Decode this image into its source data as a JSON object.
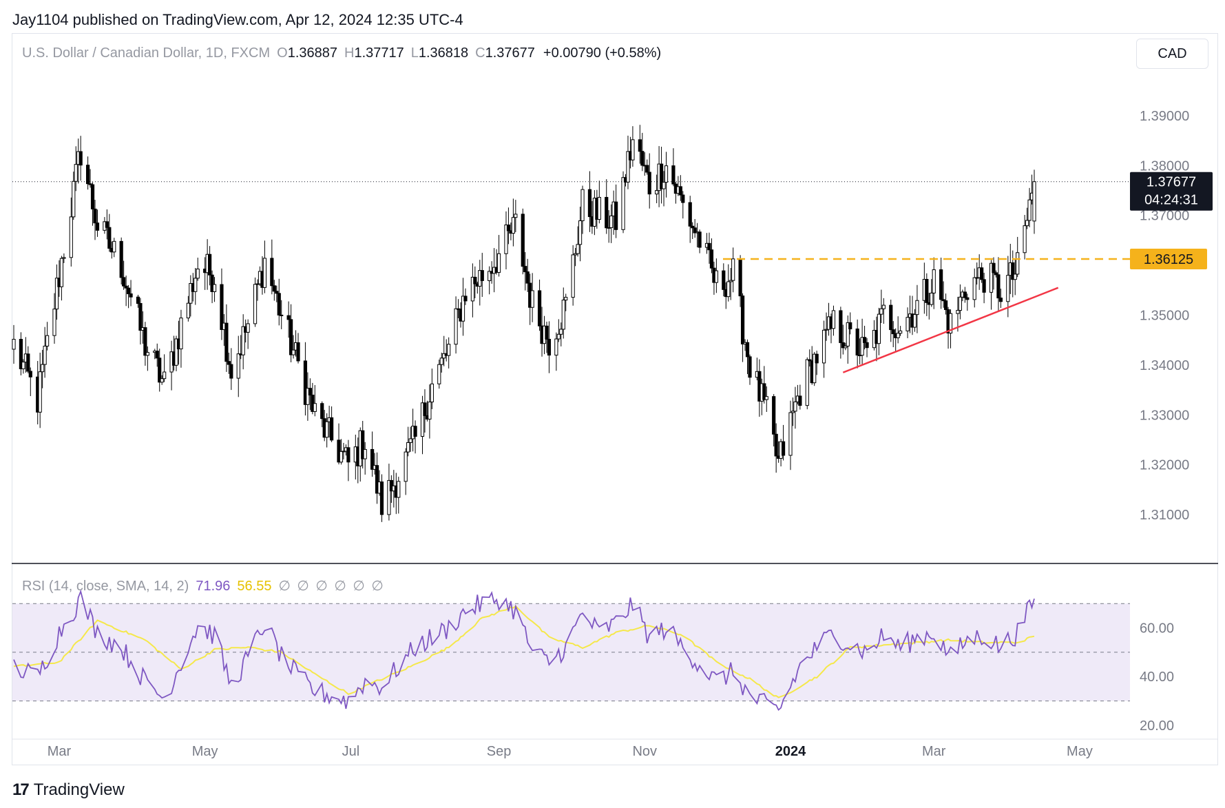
{
  "header": {
    "published_line": "Jay1104 published on TradingView.com, Apr 12, 2024 12:35 UTC-4"
  },
  "legend": {
    "symbol": "U.S. Dollar / Canadian Dollar, 1D, FXCM",
    "open_label": "O",
    "open": "1.36887",
    "high_label": "H",
    "high": "1.37717",
    "low_label": "L",
    "low": "1.36818",
    "close_label": "C",
    "close": "1.37677",
    "change": "+0.00790 (+0.58%)"
  },
  "currency_button": "CAD",
  "rsi_legend": {
    "title": "RSI (14, close, SMA, 14, 2)",
    "rsi": "71.96",
    "sma": "56.55",
    "na": "∅ ∅ ∅ ∅ ∅ ∅"
  },
  "footer": {
    "brand": "TradingView"
  },
  "colors": {
    "up": "#ffffff",
    "down": "#000000",
    "wick": "#000000",
    "support": "#f5b21b",
    "trendline": "#f23645",
    "rsi": "#7e57c2",
    "rsi_sma": "#f5e84a",
    "rsi_band": "#efeaf8",
    "rsi_bg": "#ffffff"
  },
  "chart_data": [
    {
      "type": "candlestick",
      "title": "U.S. Dollar / Canadian Dollar, 1D, FXCM",
      "ylim": [
        1.302,
        1.398
      ],
      "yticks": [
        "1.39000",
        "1.38000",
        "1.37000",
        "1.36000",
        "1.35000",
        "1.34000",
        "1.33000",
        "1.32000",
        "1.31000"
      ],
      "xticks": [
        "Mar",
        "May",
        "Jul",
        "Sep",
        "Nov",
        "2024",
        "Mar",
        "May"
      ],
      "last_price": "1.37677",
      "countdown": "04:24:31",
      "support_level": {
        "value": 1.36125,
        "label": "1.36125"
      },
      "trendline": {
        "from": [
          "2024-01-23",
          1.3385
        ],
        "to": [
          "2024-04-22",
          1.3555
        ]
      },
      "path_points": [
        [
          "2023-02-10",
          1.344
        ],
        [
          "2023-02-20",
          1.333
        ],
        [
          "2023-03-01",
          1.358
        ],
        [
          "2023-03-10",
          1.383
        ],
        [
          "2023-03-17",
          1.368
        ],
        [
          "2023-03-27",
          1.36
        ],
        [
          "2023-04-06",
          1.344
        ],
        [
          "2023-04-14",
          1.336
        ],
        [
          "2023-04-21",
          1.348
        ],
        [
          "2023-04-28",
          1.36
        ],
        [
          "2023-05-05",
          1.358
        ],
        [
          "2023-05-12",
          1.339
        ],
        [
          "2023-05-19",
          1.348
        ],
        [
          "2023-05-26",
          1.361
        ],
        [
          "2023-06-02",
          1.35
        ],
        [
          "2023-06-09",
          1.34
        ],
        [
          "2023-06-16",
          1.33
        ],
        [
          "2023-06-23",
          1.325
        ],
        [
          "2023-06-30",
          1.32
        ],
        [
          "2023-07-07",
          1.325
        ],
        [
          "2023-07-14",
          1.312
        ],
        [
          "2023-07-21",
          1.318
        ],
        [
          "2023-07-28",
          1.325
        ],
        [
          "2023-08-04",
          1.336
        ],
        [
          "2023-08-11",
          1.343
        ],
        [
          "2023-08-18",
          1.355
        ],
        [
          "2023-08-25",
          1.358
        ],
        [
          "2023-09-01",
          1.362
        ],
        [
          "2023-09-08",
          1.368
        ],
        [
          "2023-09-15",
          1.352
        ],
        [
          "2023-09-22",
          1.345
        ],
        [
          "2023-09-29",
          1.352
        ],
        [
          "2023-10-06",
          1.372
        ],
        [
          "2023-10-13",
          1.37
        ],
        [
          "2023-10-20",
          1.369
        ],
        [
          "2023-10-27",
          1.385
        ],
        [
          "2023-11-03",
          1.376
        ],
        [
          "2023-11-10",
          1.38
        ],
        [
          "2023-11-17",
          1.372
        ],
        [
          "2023-11-24",
          1.365
        ],
        [
          "2023-12-01",
          1.356
        ],
        [
          "2023-12-08",
          1.358
        ],
        [
          "2023-12-15",
          1.34
        ],
        [
          "2023-12-22",
          1.33
        ],
        [
          "2023-12-27",
          1.32
        ],
        [
          "2024-01-05",
          1.335
        ],
        [
          "2024-01-12",
          1.342
        ],
        [
          "2024-01-19",
          1.348
        ],
        [
          "2024-01-26",
          1.345
        ],
        [
          "2024-02-02",
          1.342
        ],
        [
          "2024-02-09",
          1.35
        ],
        [
          "2024-02-16",
          1.348
        ],
        [
          "2024-02-23",
          1.352
        ],
        [
          "2024-03-01",
          1.357
        ],
        [
          "2024-03-08",
          1.348
        ],
        [
          "2024-03-15",
          1.356
        ],
        [
          "2024-03-22",
          1.358
        ],
        [
          "2024-03-29",
          1.355
        ],
        [
          "2024-04-05",
          1.359
        ],
        [
          "2024-04-12",
          1.3768
        ]
      ]
    },
    {
      "type": "line",
      "title": "RSI (14, close, SMA, 14, 2)",
      "ylim": [
        18,
        76
      ],
      "yticks": [
        "60.00",
        "40.00",
        "20.00"
      ],
      "bands": [
        70,
        50,
        30
      ],
      "series": [
        {
          "name": "RSI",
          "values": [
            [
              "2023-02-10",
              44
            ],
            [
              "2023-02-20",
              40
            ],
            [
              "2023-03-01",
              58
            ],
            [
              "2023-03-10",
              72
            ],
            [
              "2023-03-17",
              58
            ],
            [
              "2023-03-27",
              52
            ],
            [
              "2023-04-06",
              38
            ],
            [
              "2023-04-14",
              31
            ],
            [
              "2023-04-21",
              46
            ],
            [
              "2023-04-28",
              61
            ],
            [
              "2023-05-05",
              57
            ],
            [
              "2023-05-12",
              36
            ],
            [
              "2023-05-19",
              48
            ],
            [
              "2023-05-26",
              62
            ],
            [
              "2023-06-02",
              48
            ],
            [
              "2023-06-09",
              40
            ],
            [
              "2023-06-16",
              34
            ],
            [
              "2023-06-23",
              32
            ],
            [
              "2023-06-30",
              30
            ],
            [
              "2023-07-07",
              38
            ],
            [
              "2023-07-14",
              36
            ],
            [
              "2023-07-21",
              44
            ],
            [
              "2023-07-28",
              52
            ],
            [
              "2023-08-04",
              56
            ],
            [
              "2023-08-11",
              60
            ],
            [
              "2023-08-18",
              67
            ],
            [
              "2023-08-25",
              70
            ],
            [
              "2023-09-01",
              72
            ],
            [
              "2023-09-08",
              67
            ],
            [
              "2023-09-15",
              50
            ],
            [
              "2023-09-22",
              46
            ],
            [
              "2023-09-29",
              52
            ],
            [
              "2023-10-06",
              66
            ],
            [
              "2023-10-13",
              58
            ],
            [
              "2023-10-20",
              62
            ],
            [
              "2023-10-27",
              70
            ],
            [
              "2023-11-03",
              56
            ],
            [
              "2023-11-10",
              60
            ],
            [
              "2023-11-17",
              52
            ],
            [
              "2023-11-24",
              45
            ],
            [
              "2023-12-01",
              38
            ],
            [
              "2023-12-08",
              42
            ],
            [
              "2023-12-15",
              32
            ],
            [
              "2023-12-22",
              28
            ],
            [
              "2023-12-27",
              26
            ],
            [
              "2024-01-05",
              44
            ],
            [
              "2024-01-12",
              52
            ],
            [
              "2024-01-19",
              58
            ],
            [
              "2024-01-26",
              53
            ],
            [
              "2024-02-02",
              50
            ],
            [
              "2024-02-09",
              57
            ],
            [
              "2024-02-16",
              52
            ],
            [
              "2024-02-23",
              56
            ],
            [
              "2024-03-01",
              58
            ],
            [
              "2024-03-08",
              48
            ],
            [
              "2024-03-15",
              55
            ],
            [
              "2024-03-22",
              57
            ],
            [
              "2024-03-29",
              52
            ],
            [
              "2024-04-05",
              58
            ],
            [
              "2024-04-12",
              72
            ]
          ]
        },
        {
          "name": "SMA",
          "values": [
            [
              "2023-02-10",
              44
            ],
            [
              "2023-03-01",
              46
            ],
            [
              "2023-03-17",
              63
            ],
            [
              "2023-04-06",
              55
            ],
            [
              "2023-04-21",
              43
            ],
            [
              "2023-05-05",
              51
            ],
            [
              "2023-05-19",
              52
            ],
            [
              "2023-06-02",
              50
            ],
            [
              "2023-06-16",
              41
            ],
            [
              "2023-06-30",
              33
            ],
            [
              "2023-07-14",
              39
            ],
            [
              "2023-07-28",
              45
            ],
            [
              "2023-08-11",
              52
            ],
            [
              "2023-08-25",
              64
            ],
            [
              "2023-09-08",
              69
            ],
            [
              "2023-09-22",
              56
            ],
            [
              "2023-10-06",
              52
            ],
            [
              "2023-10-20",
              58
            ],
            [
              "2023-11-03",
              61
            ],
            [
              "2023-11-17",
              57
            ],
            [
              "2023-12-01",
              46
            ],
            [
              "2023-12-15",
              39
            ],
            [
              "2023-12-27",
              31
            ],
            [
              "2024-01-12",
              40
            ],
            [
              "2024-01-26",
              52
            ],
            [
              "2024-02-09",
              53
            ],
            [
              "2024-02-23",
              54
            ],
            [
              "2024-03-08",
              55
            ],
            [
              "2024-03-22",
              54
            ],
            [
              "2024-04-05",
              54
            ],
            [
              "2024-04-12",
              56.55
            ]
          ]
        }
      ]
    }
  ]
}
